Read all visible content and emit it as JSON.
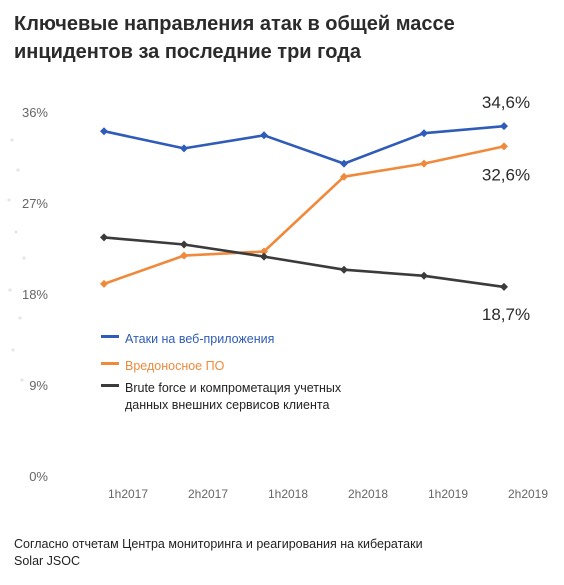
{
  "title_lines": [
    "Ключевые направления атак в общей массе",
    "инцидентов за последние три года"
  ],
  "source_lines": [
    "Согласно отчетам Центра мониторинга и реагирования на кибератаки",
    "Solar JSOC"
  ],
  "chart_data": {
    "type": "line",
    "categories": [
      "1h2017",
      "2h2017",
      "1h2018",
      "2h2018",
      "1h2019",
      "2h2019"
    ],
    "y_tick_labels": [
      "0%",
      "9%",
      "18%",
      "27%",
      "36%"
    ],
    "y_ticks": [
      0,
      9,
      18,
      27,
      36
    ],
    "ylim": [
      0,
      36
    ],
    "grid": false,
    "legend_position": "center-left",
    "series": [
      {
        "name": "Атаки на веб-приложения",
        "color": "#2f5cb8",
        "values": [
          34.1,
          32.4,
          33.7,
          30.9,
          33.9,
          34.6
        ],
        "end_label": "34,6%"
      },
      {
        "name": "Вредоносное ПО",
        "color": "#ef8a3c",
        "values": [
          19.0,
          21.8,
          22.2,
          29.6,
          30.9,
          32.6
        ],
        "end_label": "32,6%"
      },
      {
        "name": "Brute force и компрометация учетных данных внешних сервисов клиента",
        "legend_lines": [
          "Brute force и компрометация учетных",
          "данных внешних сервисов клиента"
        ],
        "color": "#3b3b3b",
        "values": [
          23.6,
          22.9,
          21.7,
          20.4,
          19.8,
          18.7
        ],
        "end_label": "18,7%"
      }
    ]
  }
}
